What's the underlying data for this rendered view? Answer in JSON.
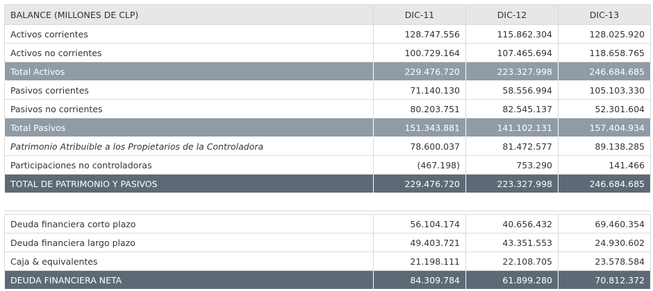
{
  "balance_table": {
    "header": [
      "BALANCE (MILLONES DE CLP)",
      "DIC-11",
      "DIC-12",
      "DIC-13"
    ],
    "rows": [
      {
        "label": "Activos corrientes",
        "values": [
          "128.747.556",
          "115.862.304",
          "128.025.920"
        ]
      },
      {
        "label": "Activos no corrientes",
        "values": [
          "100.729.164",
          "107.465.694",
          "118.658.765"
        ]
      },
      {
        "label": "Total Activos",
        "values": [
          "229.476.720",
          "223.327.998",
          "246.684.685"
        ]
      },
      {
        "label": "Pasivos corrientes",
        "values": [
          "71.140.130",
          "58.556.994",
          "105.103.330"
        ]
      },
      {
        "label": "Pasivos no corrientes",
        "values": [
          "80.203.751",
          "82.545.137",
          "52.301.604"
        ]
      },
      {
        "label": "Total Pasivos",
        "values": [
          "151.343.881",
          "141.102.131",
          "157.404.934"
        ]
      },
      {
        "label": "Patrimonio Atribuible a los Propietarios de la Controladora",
        "values": [
          "78.600.037",
          "81.472.577",
          "89.138.285"
        ]
      },
      {
        "label": "Participaciones no controladoras",
        "values": [
          "(467.198)",
          "753.290",
          "141.466"
        ]
      },
      {
        "label": "TOTAL DE PATRIMONIO Y PASIVOS",
        "values": [
          "229.476.720",
          "223.327.998",
          "246.684.685"
        ]
      }
    ]
  },
  "debt_table": {
    "rows": [
      {
        "label": "Deuda financiera corto plazo",
        "values": [
          "56.104.174",
          "40.656.432",
          "69.460.354"
        ]
      },
      {
        "label": "Deuda financiera largo plazo",
        "values": [
          "49.403.721",
          "43.351.553",
          "24.930.602"
        ]
      },
      {
        "label": "Caja & equivalentes",
        "values": [
          "21.198.111",
          "22.108.705",
          "23.578.584"
        ]
      },
      {
        "label": "DEUDA FINANCIERA NETA",
        "values": [
          "84.309.784",
          "61.899.280",
          "70.812.372"
        ]
      }
    ]
  },
  "colors": {
    "header_bg": "#e6e7e9",
    "subtotal_bg": "#8f9ca6",
    "total_bg": "#5d6a76",
    "text": "#333333"
  }
}
